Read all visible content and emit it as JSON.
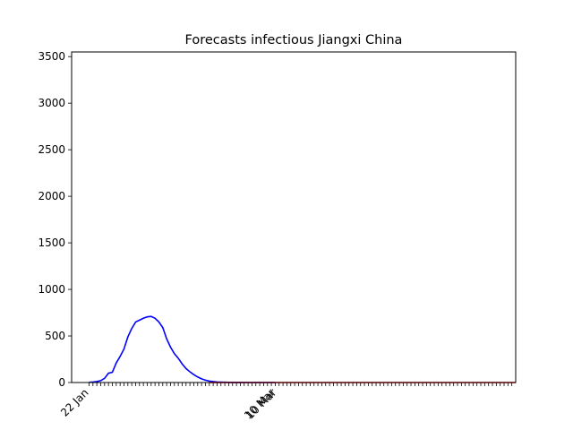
{
  "chart_data": {
    "type": "line",
    "title": "Forecasts infectious Jiangxi China",
    "xlabel": "",
    "ylabel": "",
    "x_start": "22 Jan",
    "ylim": [
      0,
      3550
    ],
    "y_ticks": [
      0,
      500,
      1000,
      1500,
      2000,
      2500,
      3000,
      3500
    ],
    "x_tick_labels": [
      {
        "label": "22 Jan",
        "day": 0
      },
      {
        "label": "10 Mar",
        "day": 48
      },
      {
        "label": "10 Mar",
        "day": 48
      }
    ],
    "xlim": [
      -4.5,
      110
    ],
    "grid": false,
    "series": [
      {
        "color": "#0000ff",
        "x": [
          0,
          1,
          2,
          3,
          4,
          5,
          6,
          7,
          8,
          9,
          10,
          11,
          12,
          13,
          14,
          15,
          16,
          17,
          18,
          19,
          20,
          21,
          22,
          23,
          24,
          25,
          26,
          27,
          28,
          29,
          30,
          31,
          32,
          33,
          34,
          35,
          36,
          37,
          38,
          39,
          40,
          41,
          42,
          43,
          44,
          45,
          46,
          47,
          48
        ],
        "values": [
          2,
          5,
          10,
          20,
          45,
          100,
          110,
          210,
          280,
          360,
          490,
          580,
          650,
          670,
          690,
          705,
          710,
          690,
          650,
          590,
          470,
          380,
          310,
          260,
          200,
          150,
          115,
          85,
          60,
          40,
          25,
          15,
          10,
          6,
          4,
          3,
          2,
          1,
          1,
          1,
          0,
          0,
          0,
          0,
          0,
          0,
          0,
          0,
          0
        ]
      },
      {
        "color": "#ff0000",
        "x_start": 31,
        "x_end": 110,
        "value": 0
      }
    ]
  }
}
